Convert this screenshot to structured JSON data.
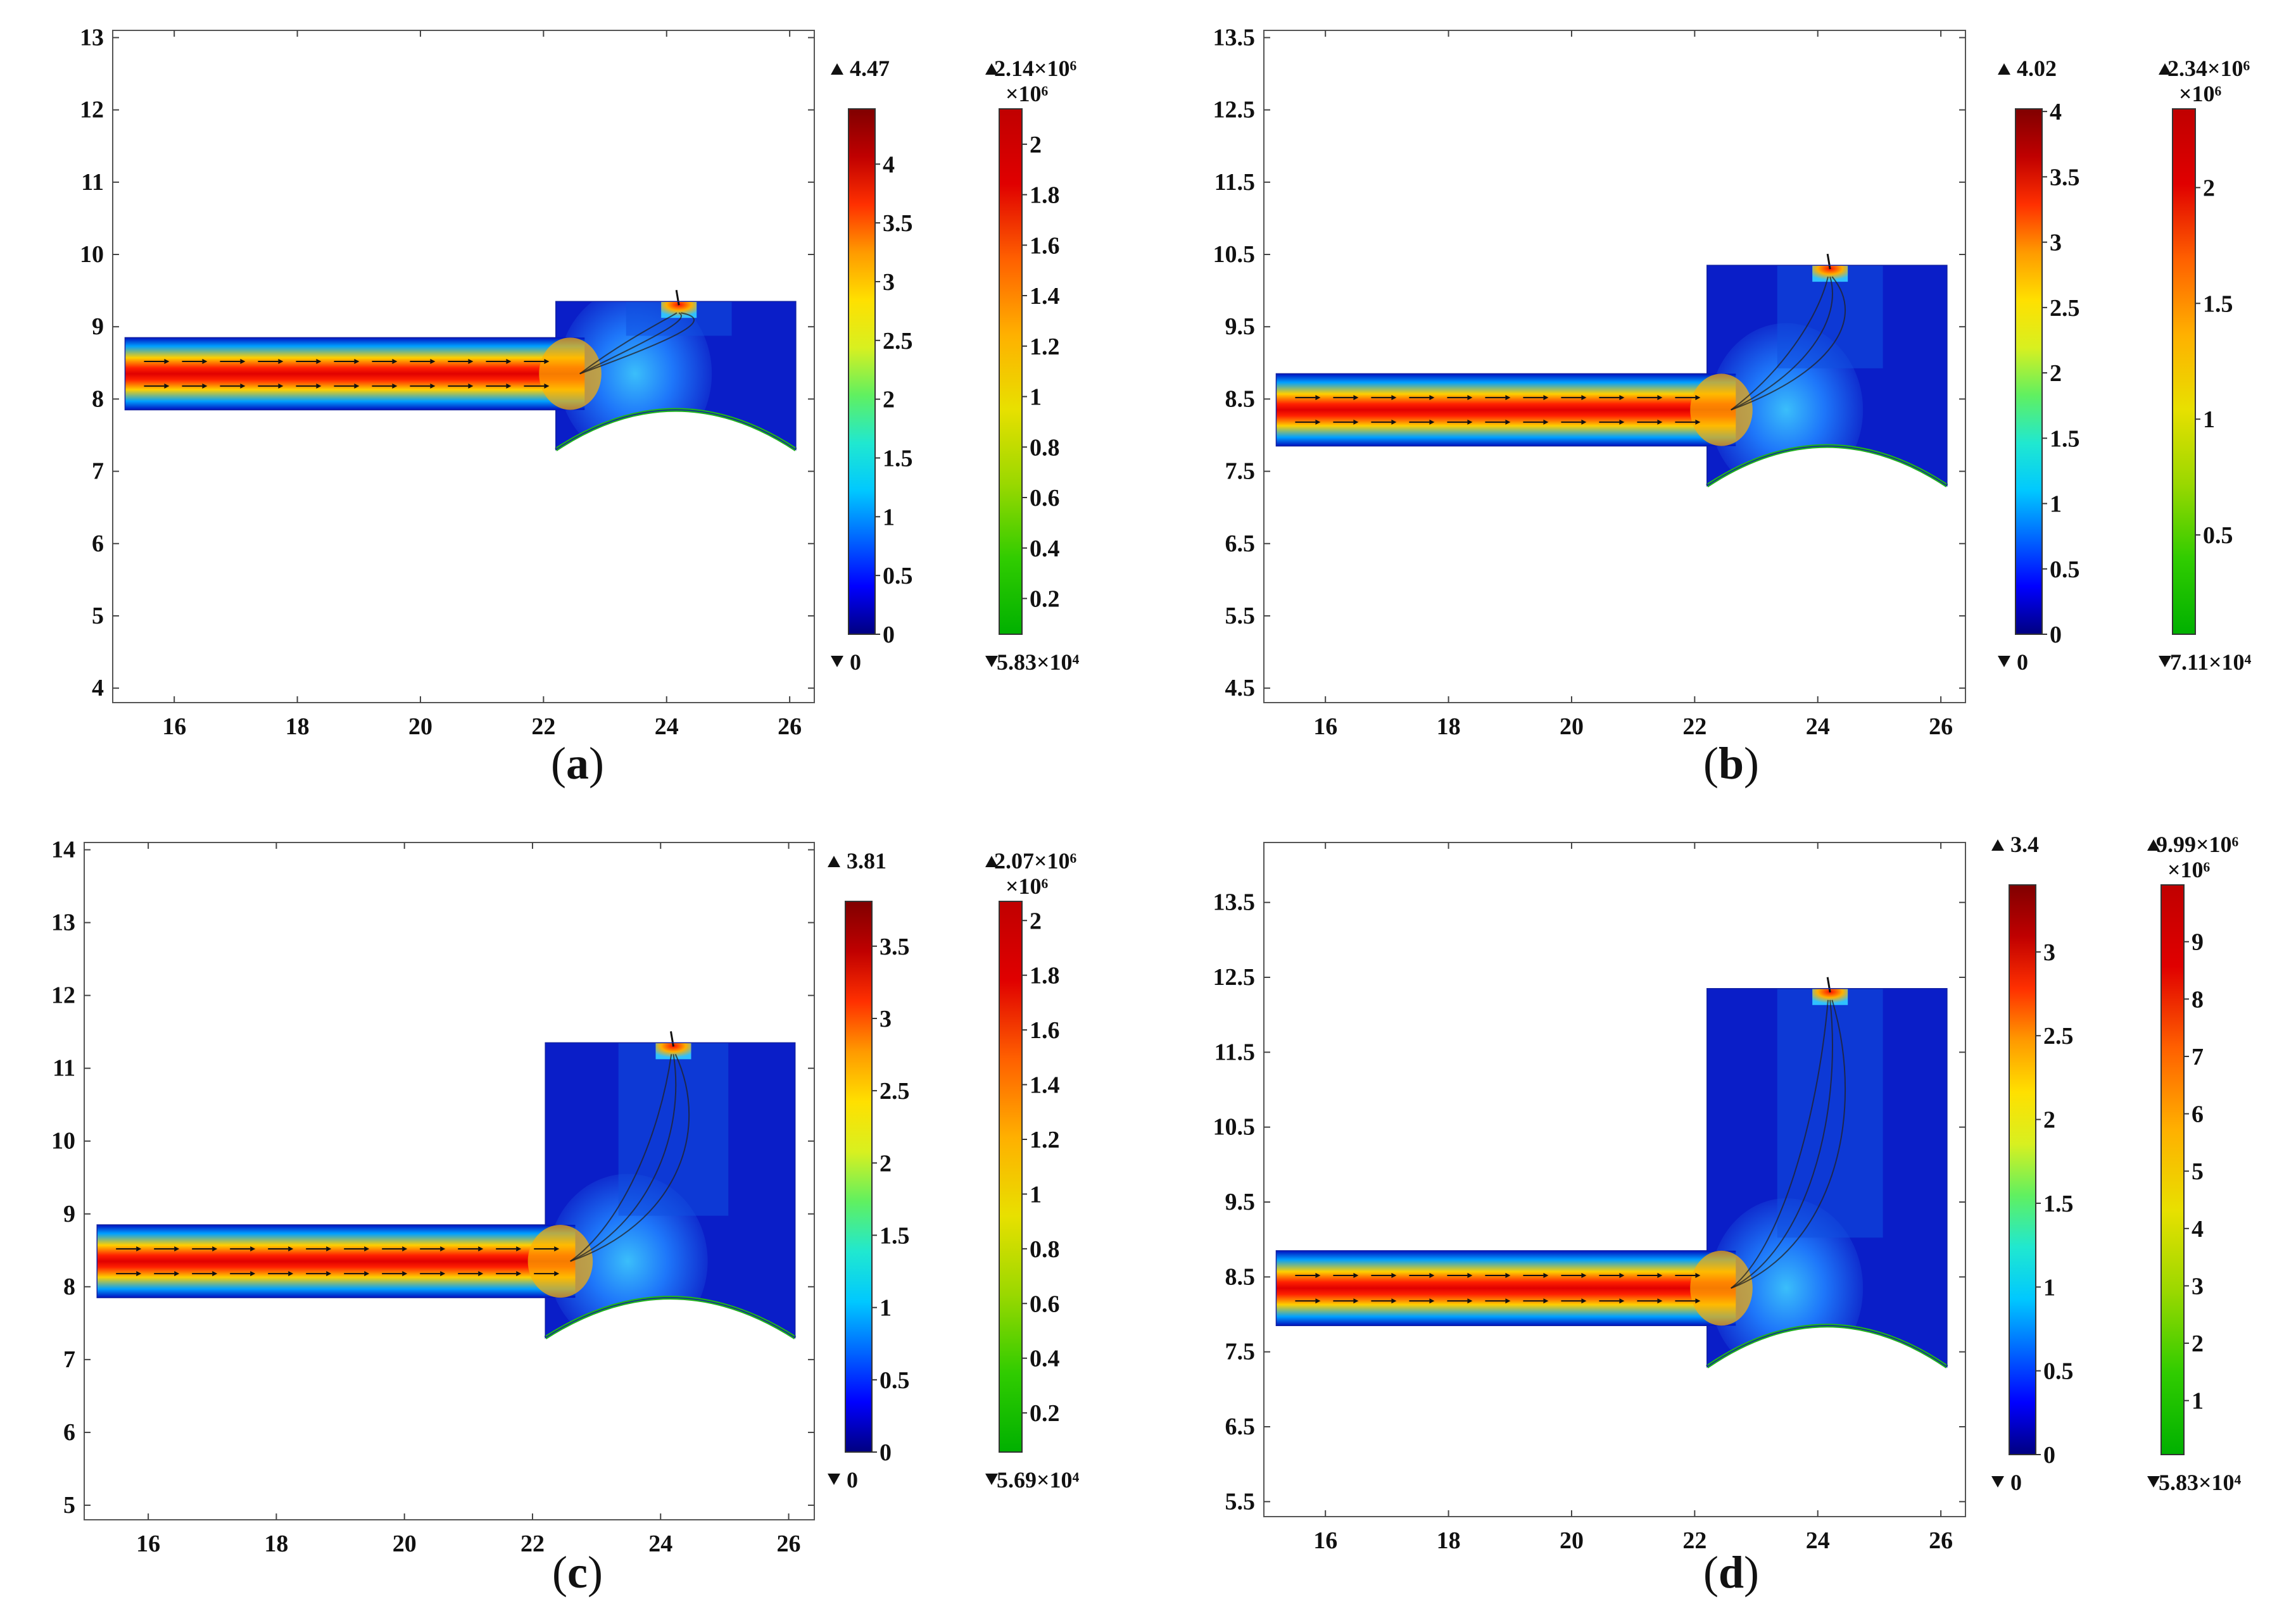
{
  "chart_data": [
    {
      "type": "heatmap",
      "panel": "a",
      "caption": {
        "open": "(",
        "letter": "a",
        "close": ")"
      },
      "description_axes": {
        "xlim": [
          15,
          26.4
        ],
        "ylim": [
          3.8,
          13.1
        ]
      },
      "xticks": [
        "16",
        "18",
        "20",
        "22",
        "24",
        "26"
      ],
      "yticks": [
        "4",
        "5",
        "6",
        "7",
        "8",
        "9",
        "10",
        "11",
        "12",
        "13"
      ],
      "geometry": {
        "channel_x": [
          15.2,
          22.2
        ],
        "channel_y": [
          7.85,
          8.85
        ],
        "chamber_x": [
          22.2,
          26.1
        ],
        "chamber_top": 9.35,
        "chamber_bottom_edge": 7.3,
        "arc_peak": 7.85,
        "outlet_x": 24.2
      },
      "colorbar_velocity": {
        "max_label": "4.47",
        "min_label": "0",
        "max": 4.47,
        "min": 0,
        "ticks": [
          "4",
          "3.5",
          "3",
          "2.5",
          "2",
          "1.5",
          "1",
          "0.5",
          "0"
        ]
      },
      "colorbar_pressure": {
        "max_label": "2.14×10⁶",
        "min_label": "5.83×10⁴",
        "multiplier": "×10⁶",
        "max": 2.14,
        "min": 0.0583,
        "ticks": [
          "2",
          "1.8",
          "1.6",
          "1.4",
          "1.2",
          "1",
          "0.8",
          "0.6",
          "0.4",
          "0.2"
        ]
      }
    },
    {
      "type": "heatmap",
      "panel": "b",
      "caption": {
        "open": "(",
        "letter": "b",
        "close": ")"
      },
      "description_axes": {
        "xlim": [
          15,
          26.4
        ],
        "ylim": [
          4.3,
          13.6
        ]
      },
      "xticks": [
        "16",
        "18",
        "20",
        "22",
        "24",
        "26"
      ],
      "yticks": [
        "4.5",
        "5.5",
        "6.5",
        "7.5",
        "8.5",
        "9.5",
        "10.5",
        "11.5",
        "12.5",
        "13.5"
      ],
      "geometry": {
        "channel_x": [
          15.2,
          22.2
        ],
        "channel_y": [
          7.85,
          8.85
        ],
        "chamber_x": [
          22.2,
          26.1
        ],
        "chamber_top": 10.35,
        "chamber_bottom_edge": 7.3,
        "arc_peak": 7.85,
        "outlet_x": 24.2
      },
      "colorbar_velocity": {
        "max_label": "4.02",
        "min_label": "0",
        "max": 4.02,
        "min": 0,
        "ticks": [
          "4",
          "3.5",
          "3",
          "2.5",
          "2",
          "1.5",
          "1",
          "0.5",
          "0"
        ]
      },
      "colorbar_pressure": {
        "max_label": "2.34×10⁶",
        "min_label": "7.11×10⁴",
        "multiplier": "×10⁶",
        "max": 2.34,
        "min": 0.0711,
        "ticks": [
          "2",
          "1.5",
          "1",
          "0.5"
        ]
      }
    },
    {
      "type": "heatmap",
      "panel": "c",
      "caption": {
        "open": "(",
        "letter": "c",
        "close": ")"
      },
      "description_axes": {
        "xlim": [
          15,
          26.4
        ],
        "ylim": [
          4.8,
          14.1
        ]
      },
      "xticks": [
        "16",
        "18",
        "20",
        "22",
        "24",
        "26"
      ],
      "yticks": [
        "5",
        "6",
        "7",
        "8",
        "9",
        "10",
        "11",
        "12",
        "13",
        "14"
      ],
      "geometry": {
        "channel_x": [
          15.2,
          22.2
        ],
        "channel_y": [
          7.85,
          8.85
        ],
        "chamber_x": [
          22.2,
          26.1
        ],
        "chamber_top": 11.35,
        "chamber_bottom_edge": 7.3,
        "arc_peak": 7.85,
        "outlet_x": 24.2
      },
      "colorbar_velocity": {
        "max_label": "3.81",
        "min_label": "0",
        "max": 3.81,
        "min": 0,
        "ticks": [
          "3.5",
          "3",
          "2.5",
          "2",
          "1.5",
          "1",
          "0.5",
          "0"
        ]
      },
      "colorbar_pressure": {
        "max_label": "2.07×10⁶",
        "min_label": "5.69×10⁴",
        "multiplier": "×10⁶",
        "max": 2.07,
        "min": 0.0569,
        "ticks": [
          "2",
          "1.8",
          "1.6",
          "1.4",
          "1.2",
          "1",
          "0.8",
          "0.6",
          "0.4",
          "0.2"
        ]
      }
    },
    {
      "type": "heatmap",
      "panel": "d",
      "caption": {
        "open": "(",
        "letter": "d",
        "close": ")"
      },
      "description_axes": {
        "xlim": [
          15,
          26.4
        ],
        "ylim": [
          5.3,
          14.3
        ]
      },
      "xticks": [
        "16",
        "18",
        "20",
        "22",
        "24",
        "26"
      ],
      "yticks": [
        "5.5",
        "6.5",
        "7.5",
        "8.5",
        "9.5",
        "10.5",
        "11.5",
        "12.5",
        "13.5"
      ],
      "geometry": {
        "channel_x": [
          15.2,
          22.2
        ],
        "channel_y": [
          7.85,
          8.85
        ],
        "chamber_x": [
          22.2,
          26.1
        ],
        "chamber_top": 12.35,
        "chamber_bottom_edge": 7.3,
        "arc_peak": 7.85,
        "outlet_x": 24.2
      },
      "colorbar_velocity": {
        "max_label": "3.4",
        "min_label": "0",
        "max": 3.4,
        "min": 0,
        "ticks": [
          "3",
          "2.5",
          "2",
          "1.5",
          "1",
          "0.5",
          "0"
        ]
      },
      "colorbar_pressure": {
        "max_label": "9.99×10⁶",
        "min_label": "5.83×10⁴",
        "multiplier": "×10⁶",
        "max": 9.99,
        "min": 0.0583,
        "ticks": [
          "9",
          "8",
          "7",
          "6",
          "5",
          "4",
          "3",
          "2",
          "1"
        ]
      }
    }
  ]
}
